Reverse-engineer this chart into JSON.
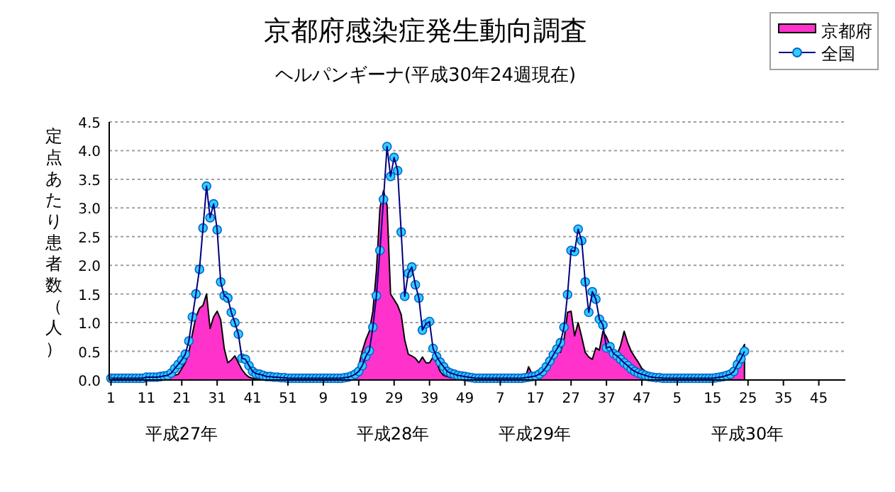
{
  "chart_data": {
    "type": "area",
    "title": "京都府感染症発生動向調査",
    "subtitle": "ヘルパンギーナ(平成30年24週現在)",
    "ylabel": "定点あたり患者数（人）",
    "categories": [
      "1",
      null,
      null,
      null,
      null,
      null,
      null,
      null,
      null,
      null,
      "11",
      null,
      null,
      null,
      null,
      null,
      null,
      null,
      null,
      null,
      "21",
      null,
      null,
      null,
      null,
      null,
      null,
      null,
      null,
      null,
      "31",
      null,
      null,
      null,
      null,
      null,
      null,
      null,
      null,
      null,
      "41",
      null,
      null,
      null,
      null,
      null,
      null,
      null,
      null,
      null,
      "51",
      null,
      null,
      null,
      null,
      null,
      null,
      null,
      null,
      null,
      "9",
      null,
      null,
      null,
      null,
      null,
      null,
      null,
      null,
      null,
      "19",
      null,
      null,
      null,
      null,
      null,
      null,
      null,
      null,
      null,
      "29",
      null,
      null,
      null,
      null,
      null,
      null,
      null,
      null,
      null,
      "39",
      null,
      null,
      null,
      null,
      null,
      null,
      null,
      null,
      null,
      "49",
      null,
      null,
      null,
      null,
      null,
      null,
      null,
      null,
      null,
      "7",
      null,
      null,
      null,
      null,
      null,
      null,
      null,
      null,
      null,
      "17",
      null,
      null,
      null,
      null,
      null,
      null,
      null,
      null,
      null,
      "27",
      null,
      null,
      null,
      null,
      null,
      null,
      null,
      null,
      null,
      "37",
      null,
      null,
      null,
      null,
      null,
      null,
      null,
      null,
      null,
      "47",
      null,
      null,
      null,
      null,
      null,
      null,
      null,
      null,
      null,
      "5",
      null,
      null,
      null,
      null,
      null,
      null,
      null,
      null,
      null,
      "15",
      null,
      null,
      null,
      null,
      null,
      null,
      null,
      null,
      null,
      "25",
      null,
      null,
      null,
      null,
      null,
      null,
      null,
      null,
      null,
      "35",
      null,
      null,
      null,
      null,
      null,
      null,
      null,
      null,
      null,
      "45",
      null,
      null,
      null,
      null,
      null,
      null,
      null
    ],
    "series": [
      {
        "name": "京都府",
        "marker": "none",
        "color": "#ff33cc",
        "values": [
          0.02,
          0.02,
          0.02,
          0.02,
          0.02,
          0.02,
          0.02,
          0.02,
          0.02,
          0.02,
          0.02,
          0.02,
          0.02,
          0.02,
          0.02,
          0.02,
          0.02,
          0.05,
          0.08,
          0.1,
          0.2,
          0.3,
          0.48,
          0.8,
          1.1,
          1.25,
          1.3,
          1.5,
          0.9,
          1.1,
          1.2,
          1.05,
          0.55,
          0.3,
          0.35,
          0.42,
          0.3,
          0.18,
          0.1,
          0.05,
          0.03,
          0.02,
          0.02,
          0.02,
          0.02,
          0.02,
          0.02,
          0.02,
          0.02,
          0.02,
          0.02,
          0.02,
          0.02,
          0.02,
          0.02,
          0.02,
          0.02,
          0.02,
          0.02,
          0.02,
          0.02,
          0.02,
          0.02,
          0.02,
          0.02,
          0.02,
          0.02,
          0.02,
          0.03,
          0.1,
          0.25,
          0.5,
          0.7,
          0.85,
          1.2,
          1.9,
          3.0,
          3.3,
          3.05,
          1.5,
          1.4,
          1.3,
          1.14,
          0.7,
          0.45,
          0.42,
          0.38,
          0.3,
          0.4,
          0.3,
          0.3,
          0.4,
          0.3,
          0.15,
          0.08,
          0.06,
          0.04,
          0.04,
          0.03,
          0.03,
          0.02,
          0.02,
          0.02,
          0.02,
          0.02,
          0.02,
          0.02,
          0.02,
          0.02,
          0.02,
          0.02,
          0.02,
          0.02,
          0.02,
          0.02,
          0.02,
          0.02,
          0.02,
          0.23,
          0.1,
          0.12,
          0.15,
          0.2,
          0.3,
          0.36,
          0.45,
          0.5,
          0.48,
          0.7,
          1.18,
          1.2,
          0.77,
          1.0,
          0.75,
          0.48,
          0.4,
          0.36,
          0.56,
          0.52,
          0.85,
          0.75,
          0.6,
          0.48,
          0.44,
          0.6,
          0.85,
          0.65,
          0.5,
          0.4,
          0.31,
          0.2,
          0.15,
          0.1,
          0.05,
          0.03,
          0.02,
          0.02,
          0.02,
          0.02,
          0.02,
          0.02,
          0.02,
          0.02,
          0.02,
          0.02,
          0.02,
          0.02,
          0.02,
          0.02,
          0.02,
          0.02,
          0.02,
          0.03,
          0.04,
          0.06,
          0.1,
          0.2,
          0.4,
          0.5,
          0.62,
          null,
          null,
          null,
          null,
          null,
          null,
          null,
          null,
          null,
          null,
          null,
          null,
          null,
          null,
          null,
          null,
          null,
          null,
          null,
          null,
          null,
          null,
          null,
          null,
          null,
          null,
          null,
          null
        ]
      },
      {
        "name": "全国",
        "type": "line",
        "color": "#33ccff",
        "values": [
          0.03,
          0.03,
          0.03,
          0.03,
          0.03,
          0.03,
          0.03,
          0.03,
          0.03,
          0.03,
          0.05,
          0.05,
          0.05,
          0.05,
          0.06,
          0.07,
          0.08,
          0.12,
          0.2,
          0.27,
          0.35,
          0.45,
          0.68,
          1.1,
          1.5,
          1.93,
          2.65,
          3.38,
          2.83,
          3.07,
          2.62,
          1.71,
          1.47,
          1.43,
          1.18,
          1.0,
          0.8,
          0.38,
          0.36,
          0.25,
          0.15,
          0.11,
          0.1,
          0.08,
          0.06,
          0.06,
          0.05,
          0.05,
          0.04,
          0.04,
          0.03,
          0.03,
          0.03,
          0.03,
          0.03,
          0.03,
          0.03,
          0.03,
          0.03,
          0.03,
          0.03,
          0.03,
          0.03,
          0.03,
          0.03,
          0.03,
          0.04,
          0.05,
          0.07,
          0.1,
          0.15,
          0.25,
          0.41,
          0.51,
          0.92,
          1.47,
          2.26,
          3.15,
          4.07,
          3.55,
          3.88,
          3.65,
          2.58,
          1.46,
          1.86,
          1.97,
          1.66,
          1.43,
          0.87,
          0.98,
          1.02,
          0.55,
          0.41,
          0.31,
          0.23,
          0.15,
          0.12,
          0.1,
          0.08,
          0.07,
          0.06,
          0.05,
          0.04,
          0.03,
          0.03,
          0.03,
          0.03,
          0.03,
          0.03,
          0.03,
          0.03,
          0.03,
          0.03,
          0.03,
          0.03,
          0.03,
          0.03,
          0.04,
          0.05,
          0.06,
          0.07,
          0.1,
          0.15,
          0.23,
          0.33,
          0.44,
          0.54,
          0.65,
          0.92,
          1.49,
          2.26,
          2.24,
          2.63,
          2.43,
          1.71,
          1.18,
          1.54,
          1.41,
          1.06,
          0.96,
          0.56,
          0.58,
          0.46,
          0.42,
          0.36,
          0.3,
          0.25,
          0.19,
          0.15,
          0.12,
          0.1,
          0.08,
          0.06,
          0.05,
          0.04,
          0.04,
          0.03,
          0.03,
          0.03,
          0.03,
          0.03,
          0.03,
          0.03,
          0.03,
          0.03,
          0.03,
          0.03,
          0.03,
          0.03,
          0.03,
          0.03,
          0.04,
          0.05,
          0.06,
          0.08,
          0.1,
          0.15,
          0.27,
          0.37,
          0.5,
          null,
          null,
          null,
          null,
          null,
          null,
          null,
          null,
          null,
          null,
          null,
          null,
          null,
          null,
          null,
          null,
          null,
          null,
          null,
          null,
          null,
          null,
          null,
          null,
          null,
          null,
          null,
          null
        ]
      }
    ],
    "ylim": [
      0,
      4.5
    ],
    "yticks": [
      {
        "value": 0,
        "label": "0.0"
      },
      {
        "value": 0.5,
        "label": "0.5"
      },
      {
        "value": 1,
        "label": "1.0"
      },
      {
        "value": 1.5,
        "label": "1.5"
      },
      {
        "value": 2,
        "label": "2.0"
      },
      {
        "value": 2.5,
        "label": "2.5"
      },
      {
        "value": 3,
        "label": "3.0"
      },
      {
        "value": 3.5,
        "label": "3.5"
      },
      {
        "value": 4,
        "label": "4.0"
      },
      {
        "value": 4.5,
        "label": "4.5"
      }
    ],
    "grid": "y",
    "legend": "top right",
    "marker": "circle",
    "annotations": [
      "平成27年",
      "平成28年",
      "平成29年",
      "平成30年"
    ]
  }
}
